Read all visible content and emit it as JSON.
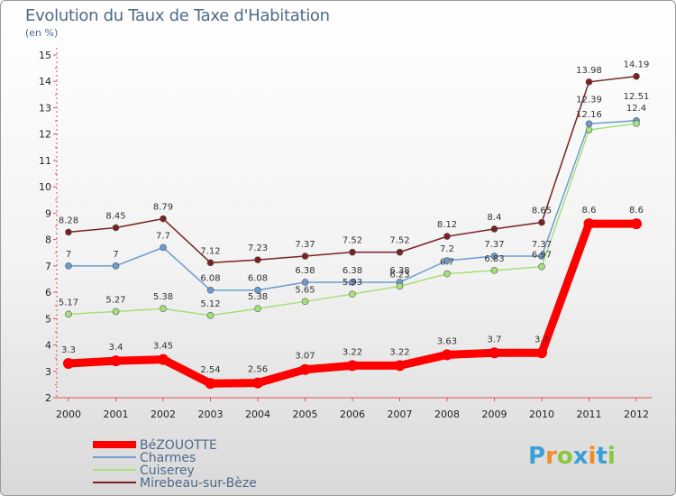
{
  "chart_data": {
    "type": "line",
    "title": "Evolution du Taux de Taxe d'Habitation",
    "unit_label": "(en %)",
    "x": [
      "2000",
      "2001",
      "2002",
      "2003",
      "2004",
      "2005",
      "2006",
      "2007",
      "2008",
      "2009",
      "2010",
      "2011",
      "2012"
    ],
    "ylim": [
      2,
      15
    ],
    "yticks": [
      2,
      3,
      4,
      5,
      6,
      7,
      8,
      9,
      10,
      11,
      12,
      13,
      14,
      15
    ],
    "grid": false,
    "legend_position": "bottom-left",
    "series": [
      {
        "name": "BéZOUOTTE",
        "color": "#ff0000",
        "values": [
          3.3,
          3.4,
          3.45,
          2.54,
          2.56,
          3.07,
          3.22,
          3.22,
          3.63,
          3.7,
          3.7,
          8.6,
          8.6
        ],
        "labels": [
          "3.3",
          "3.4",
          "3.45",
          "2.54",
          "2.56",
          "3.07",
          "3.22",
          "3.22",
          "3.63",
          "3.7",
          "3.7",
          "8.6",
          "8.6"
        ]
      },
      {
        "name": "Charmes",
        "color": "#6a9ccf",
        "values": [
          7,
          7,
          7.7,
          6.08,
          6.08,
          6.38,
          6.38,
          6.38,
          7.2,
          7.37,
          7.37,
          12.39,
          12.51
        ],
        "labels": [
          "7",
          "7",
          "7.7",
          "6.08",
          "6.08",
          "6.38",
          "6.38",
          "6.38",
          "7.2",
          "7.37",
          "7.37",
          "12.39",
          "12.51"
        ]
      },
      {
        "name": "Cuiserey",
        "color": "#a6e07a",
        "values": [
          5.17,
          5.27,
          5.38,
          5.12,
          5.38,
          5.65,
          5.93,
          6.23,
          6.7,
          6.83,
          6.97,
          12.16,
          12.4
        ],
        "labels": [
          "5.17",
          "5.27",
          "5.38",
          "5.12",
          "5.38",
          "5.65",
          "5.93",
          "6.23",
          "6.7",
          "6.83",
          "6.97",
          "12.16",
          "12.4"
        ]
      },
      {
        "name": "Mirebeau-sur-Bèze",
        "color": "#7a2222",
        "values": [
          8.28,
          8.45,
          8.79,
          7.12,
          7.23,
          7.37,
          7.52,
          7.52,
          8.12,
          8.4,
          8.65,
          13.98,
          14.19
        ],
        "labels": [
          "8.28",
          "8.45",
          "8.79",
          "7.12",
          "7.23",
          "7.37",
          "7.52",
          "7.52",
          "8.12",
          "8.4",
          "8.65",
          "13.98",
          "14.19"
        ]
      }
    ]
  },
  "logo": {
    "letters": [
      "P",
      "r",
      "o",
      "x",
      "i",
      "t",
      "i"
    ],
    "colors": [
      "#3aa0d8",
      "#f28c28",
      "#8cc63f",
      "#3aa0d8",
      "#f28c28",
      "#3aa0d8",
      "#8cc63f"
    ]
  }
}
